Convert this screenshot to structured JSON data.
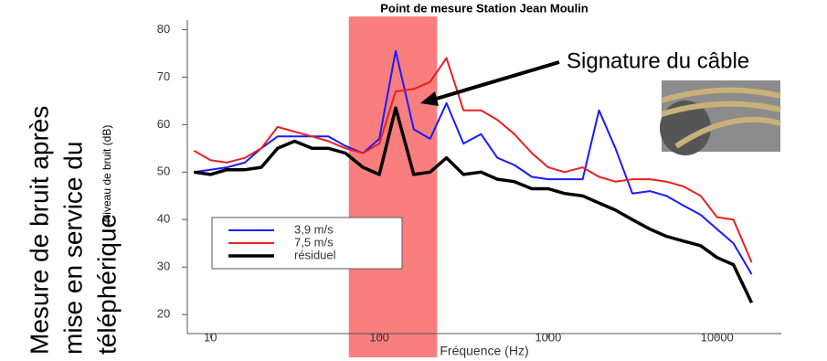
{
  "chart_data": {
    "type": "line",
    "title": "Point de mesure Station Jean Moulin",
    "x_label": "Fréquence (Hz)",
    "y_label": "Niveau de bruit (dB)",
    "side_text": [
      "Mesure de bruit après",
      "mise en service du",
      "téléphérique"
    ],
    "annotation": "Signature du câble",
    "x_log": true,
    "x": [
      8,
      10,
      12.5,
      16,
      20,
      25,
      31.5,
      40,
      50,
      63,
      80,
      100,
      125,
      160,
      200,
      250,
      315,
      400,
      500,
      630,
      800,
      1000,
      1250,
      1600,
      2000,
      2500,
      3150,
      4000,
      5000,
      6300,
      8000,
      10000,
      12500,
      16000
    ],
    "series": [
      {
        "name": "3,9 m/s",
        "color": "#1a1aff",
        "values": [
          50,
          50.5,
          51,
          52,
          55,
          57.5,
          57.5,
          57.5,
          57.5,
          55.5,
          54,
          57,
          75.5,
          59,
          57,
          64.5,
          56,
          58,
          53,
          51.5,
          49,
          48.5,
          48.5,
          48.5,
          63,
          55,
          45.5,
          46,
          45,
          43,
          41,
          38,
          35,
          28.5
        ]
      },
      {
        "name": "7,5 m/s",
        "color": "#e82020",
        "values": [
          54.5,
          52.5,
          52,
          53,
          55,
          59.5,
          58.5,
          57.5,
          56.5,
          55,
          54,
          56,
          67,
          67.5,
          69,
          74,
          63,
          63,
          61,
          58,
          54,
          51,
          50,
          51,
          49,
          48,
          48.5,
          48.5,
          48,
          47,
          45,
          40.5,
          40,
          31
        ]
      },
      {
        "name": "résiduel",
        "color": "#000000",
        "values": [
          50,
          49.5,
          50.5,
          50.5,
          51,
          55,
          56.5,
          55,
          55,
          54,
          51,
          49.5,
          63.5,
          49.5,
          50,
          53,
          49.5,
          50,
          48.5,
          48,
          46.5,
          46.5,
          45.5,
          45,
          43.5,
          42,
          40,
          38,
          36.5,
          35.5,
          34.5,
          32,
          30.5,
          22.5
        ]
      }
    ],
    "highlight": {
      "xmin": 66,
      "xmax": 220,
      "color": "#f87070"
    },
    "xlim": [
      7.3,
      24000
    ],
    "ylim": [
      16,
      82
    ],
    "xticks": [
      10,
      100,
      1000,
      10000
    ],
    "yticks": [
      20,
      30,
      40,
      50,
      60,
      70,
      80
    ]
  }
}
